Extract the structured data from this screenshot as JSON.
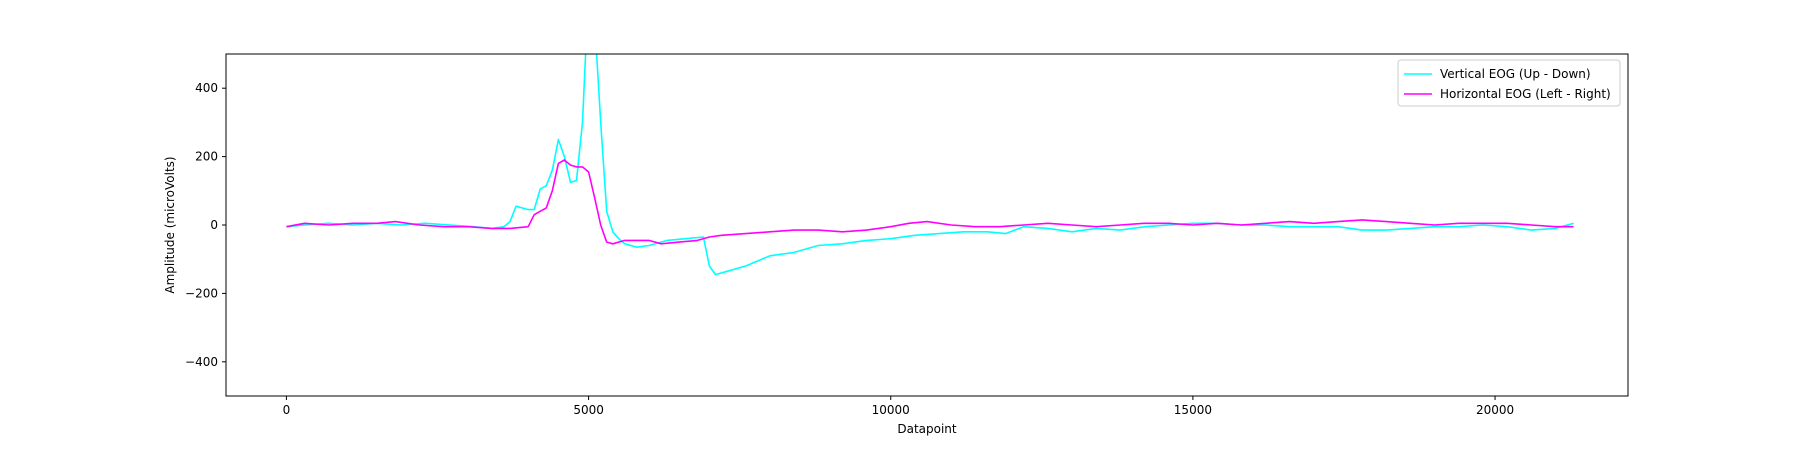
{
  "chart_data": {
    "type": "line",
    "title": "",
    "xlabel": "Datapoint",
    "ylabel": "Amplitude (microVolts)",
    "xlim": [
      -1000,
      22200
    ],
    "ylim": [
      -500,
      500
    ],
    "xticks": [
      0,
      5000,
      10000,
      15000,
      20000
    ],
    "xtick_labels": [
      "0",
      "5000",
      "10000",
      "15000",
      "20000"
    ],
    "yticks": [
      -400,
      -200,
      0,
      200,
      400
    ],
    "ytick_labels": [
      "−400",
      "−200",
      "0",
      "200",
      "400"
    ],
    "grid": false,
    "legend_position": "top-right",
    "series": [
      {
        "name": "Vertical EOG (Up - Down)",
        "color": "#00ffff",
        "x": [
          0,
          300,
          700,
          1100,
          1500,
          1900,
          2300,
          2700,
          3100,
          3400,
          3600,
          3700,
          3800,
          4000,
          4100,
          4200,
          4300,
          4400,
          4500,
          4600,
          4700,
          4800,
          4900,
          4950,
          5000,
          5100,
          5200,
          5300,
          5400,
          5500,
          5600,
          5800,
          6000,
          6200,
          6300,
          6600,
          6900,
          7000,
          7100,
          7300,
          7600,
          8000,
          8400,
          8800,
          9200,
          9600,
          10000,
          10400,
          10800,
          11200,
          11600,
          11900,
          12200,
          12600,
          13000,
          13400,
          13800,
          14200,
          14600,
          15000,
          15400,
          15800,
          16200,
          16600,
          17000,
          17400,
          17800,
          18200,
          18600,
          19000,
          19400,
          19800,
          20200,
          20600,
          21000,
          21300
        ],
        "y": [
          -5,
          0,
          5,
          0,
          5,
          0,
          5,
          0,
          -5,
          -10,
          -5,
          10,
          55,
          45,
          45,
          105,
          115,
          160,
          250,
          200,
          125,
          130,
          300,
          500,
          600,
          600,
          300,
          40,
          -20,
          -40,
          -55,
          -65,
          -60,
          -50,
          -45,
          -40,
          -35,
          -120,
          -145,
          -135,
          -120,
          -90,
          -80,
          -60,
          -55,
          -45,
          -40,
          -30,
          -25,
          -20,
          -20,
          -25,
          -5,
          -10,
          -20,
          -10,
          -15,
          -5,
          0,
          5,
          5,
          0,
          0,
          -5,
          -5,
          -5,
          -15,
          -15,
          -10,
          -5,
          -5,
          0,
          -5,
          -15,
          -10,
          5
        ]
      },
      {
        "name": "Horizontal EOG (Left - Right)",
        "color": "#ff00ff",
        "x": [
          0,
          300,
          700,
          1100,
          1500,
          1800,
          2200,
          2600,
          3000,
          3400,
          3700,
          4000,
          4100,
          4200,
          4300,
          4400,
          4500,
          4600,
          4700,
          4800,
          4900,
          5000,
          5100,
          5200,
          5300,
          5400,
          5600,
          6000,
          6200,
          6500,
          6800,
          7000,
          7200,
          7600,
          8000,
          8400,
          8800,
          9200,
          9600,
          10000,
          10300,
          10600,
          11000,
          11400,
          11800,
          12200,
          12600,
          13000,
          13400,
          13800,
          14200,
          14600,
          15000,
          15400,
          15800,
          16200,
          16600,
          17000,
          17400,
          17800,
          18200,
          18600,
          19000,
          19400,
          19800,
          20200,
          20600,
          21000,
          21300
        ],
        "y": [
          -5,
          5,
          0,
          5,
          5,
          10,
          0,
          -5,
          -5,
          -10,
          -10,
          -5,
          30,
          40,
          50,
          100,
          180,
          190,
          175,
          170,
          170,
          155,
          80,
          0,
          -50,
          -55,
          -45,
          -45,
          -55,
          -50,
          -45,
          -35,
          -30,
          -25,
          -20,
          -15,
          -15,
          -20,
          -15,
          -5,
          5,
          10,
          0,
          -5,
          -5,
          0,
          5,
          0,
          -5,
          0,
          5,
          5,
          0,
          5,
          0,
          5,
          10,
          5,
          10,
          15,
          10,
          5,
          0,
          5,
          5,
          5,
          0,
          -5,
          -5
        ]
      }
    ]
  }
}
